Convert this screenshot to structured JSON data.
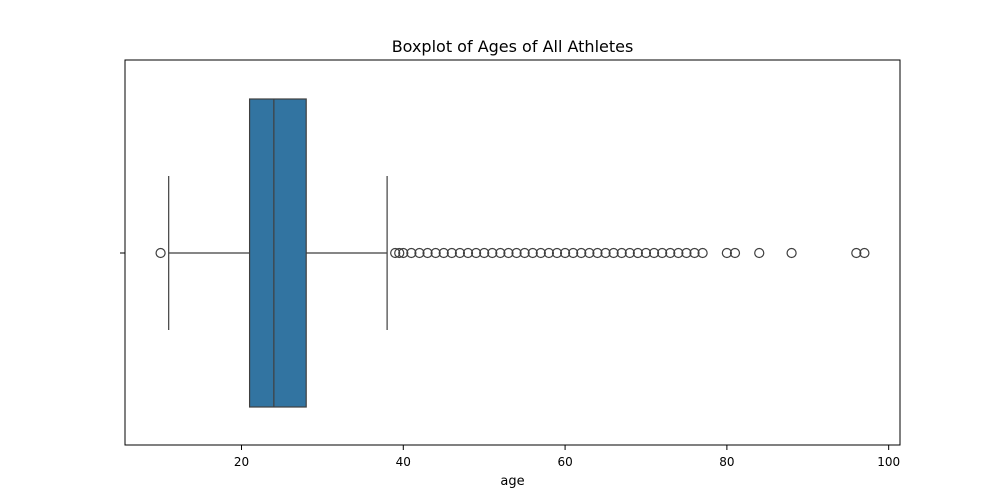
{
  "chart_data": {
    "type": "boxplot",
    "title": "Boxplot of Ages of All Athletes",
    "xlabel": "age",
    "ylabel": "",
    "xlim": [
      5.6,
      101.4
    ],
    "xticks": [
      20,
      40,
      60,
      80,
      100
    ],
    "orientation": "horizontal",
    "box": {
      "whisker_low": 11,
      "q1": 21,
      "median": 24,
      "q3": 28,
      "whisker_high": 38
    },
    "outliers": [
      10,
      39,
      39.5,
      40,
      41,
      42,
      43,
      44,
      45,
      46,
      47,
      48,
      49,
      50,
      51,
      52,
      53,
      54,
      55,
      56,
      57,
      58,
      59,
      60,
      61,
      62,
      63,
      64,
      65,
      66,
      67,
      68,
      69,
      70,
      71,
      72,
      73,
      74,
      75,
      76,
      77,
      80,
      81,
      84,
      88,
      96,
      97
    ],
    "colors": {
      "box_fill": "#3274a1",
      "line": "#3f3f3f",
      "axes": "#000000"
    },
    "grid": false,
    "legend": "none"
  }
}
